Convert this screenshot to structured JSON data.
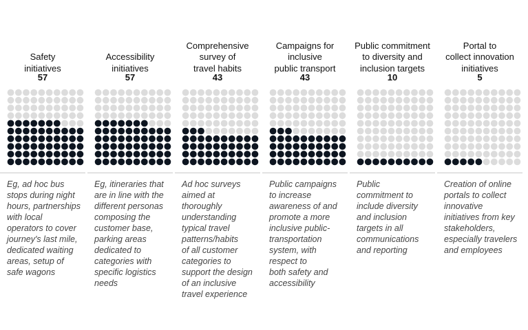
{
  "chart_data": {
    "type": "waffle",
    "grid": {
      "rows": 10,
      "cols": 10,
      "total": 100
    },
    "colors": {
      "filled": "#0d1520",
      "empty": "#dcdcdc"
    },
    "categories": [
      {
        "title_lines": [
          "Safety",
          "initiatives"
        ],
        "value": 57,
        "description_lines": [
          "Eg, ad hoc bus",
          "stops during night",
          "hours, partnerships",
          "with local",
          "operators to cover",
          "journey's last mile,",
          "dedicated waiting",
          "areas, setup of",
          "safe wagons"
        ]
      },
      {
        "title_lines": [
          "Accessibility",
          "initiatives"
        ],
        "value": 57,
        "description_lines": [
          "Eg, itineraries that",
          "are in line with the",
          "different personas",
          "composing the",
          "customer base,",
          "parking areas",
          "dedicated to",
          "categories with",
          "specific logistics",
          "needs"
        ]
      },
      {
        "title_lines": [
          "Comprehensive",
          "survey of",
          "travel habits"
        ],
        "value": 43,
        "description_lines": [
          "Ad hoc surveys",
          "aimed at",
          "thoroughly",
          "understanding",
          "typical travel",
          "patterns/habits",
          "of all customer",
          "categories to",
          "support the design",
          "of an inclusive",
          "travel experience"
        ]
      },
      {
        "title_lines": [
          "Campaigns for",
          "inclusive",
          "public transport"
        ],
        "value": 43,
        "description_lines": [
          "Public campaigns",
          "to increase",
          "awareness of and",
          "promote a more",
          "inclusive public-",
          "transportation",
          "system, with",
          "respect to",
          "both safety and",
          "accessibility"
        ]
      },
      {
        "title_lines": [
          "Public commitment",
          "to diversity and",
          "inclusion targets"
        ],
        "value": 10,
        "description_lines": [
          "Public",
          "commitment to",
          "include diversity",
          "and inclusion",
          "targets in all",
          "communications",
          "and reporting"
        ]
      },
      {
        "title_lines": [
          "Portal to",
          "collect innovation",
          "initiatives"
        ],
        "value": 5,
        "description_lines": [
          "Creation of online",
          "portals to collect",
          "innovative",
          "initiatives from key",
          "stakeholders,",
          "especially travelers",
          "and employees"
        ]
      }
    ]
  }
}
